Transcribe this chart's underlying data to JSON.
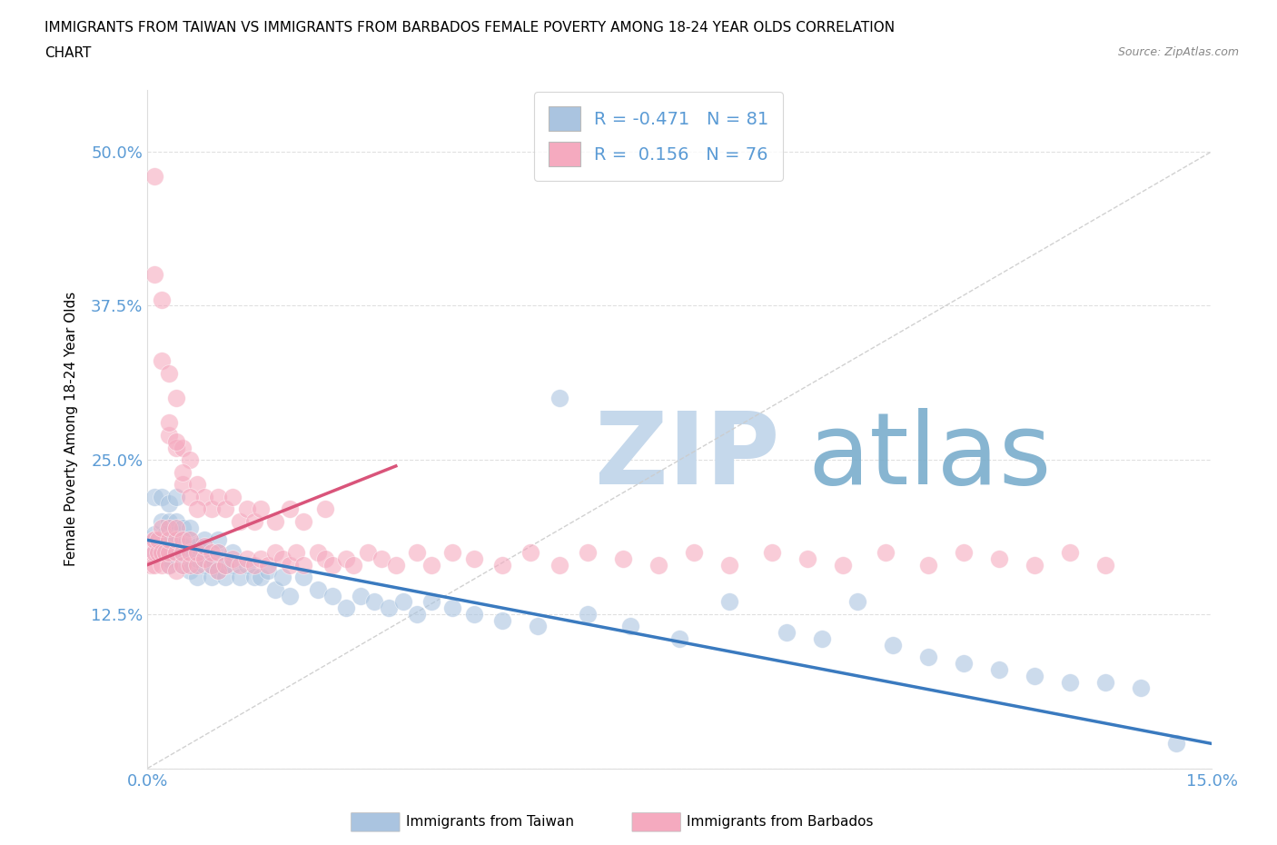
{
  "title_line1": "IMMIGRANTS FROM TAIWAN VS IMMIGRANTS FROM BARBADOS FEMALE POVERTY AMONG 18-24 YEAR OLDS CORRELATION",
  "title_line2": "CHART",
  "source_text": "Source: ZipAtlas.com",
  "ylabel": "Female Poverty Among 18-24 Year Olds",
  "xmin": 0.0,
  "xmax": 0.15,
  "ymin": 0.0,
  "ymax": 0.55,
  "yticks": [
    0.0,
    0.125,
    0.25,
    0.375,
    0.5
  ],
  "ytick_labels": [
    "",
    "12.5%",
    "25.0%",
    "37.5%",
    "50.0%"
  ],
  "xticks": [
    0.0,
    0.025,
    0.05,
    0.075,
    0.1,
    0.125,
    0.15
  ],
  "xtick_labels": [
    "0.0%",
    "",
    "",
    "",
    "",
    "",
    "15.0%"
  ],
  "taiwan_color": "#aac4e0",
  "barbados_color": "#f5aabf",
  "taiwan_line_color": "#3a7abf",
  "barbados_line_color": "#d9547a",
  "taiwan_R": -0.471,
  "taiwan_N": 81,
  "barbados_R": 0.156,
  "barbados_N": 76,
  "watermark_zip": "ZIP",
  "watermark_atlas": "atlas",
  "watermark_color_zip": "#c5d8eb",
  "watermark_color_atlas": "#7aadcc",
  "legend_taiwan_label": "Immigrants from Taiwan",
  "legend_barbados_label": "Immigrants from Barbados",
  "taiwan_line_x0": 0.0,
  "taiwan_line_y0": 0.185,
  "taiwan_line_x1": 0.15,
  "taiwan_line_y1": 0.02,
  "barbados_line_x0": 0.0,
  "barbados_line_y0": 0.165,
  "barbados_line_x1": 0.035,
  "barbados_line_y1": 0.245,
  "diag_line_x0": 0.0,
  "diag_line_y0": 0.0,
  "diag_line_x1": 0.15,
  "diag_line_y1": 0.5,
  "taiwan_scatter_x": [
    0.0005,
    0.001,
    0.001,
    0.001,
    0.0015,
    0.002,
    0.002,
    0.002,
    0.0025,
    0.003,
    0.003,
    0.003,
    0.003,
    0.003,
    0.004,
    0.004,
    0.004,
    0.004,
    0.005,
    0.005,
    0.005,
    0.005,
    0.006,
    0.006,
    0.006,
    0.006,
    0.007,
    0.007,
    0.007,
    0.008,
    0.008,
    0.008,
    0.009,
    0.009,
    0.009,
    0.01,
    0.01,
    0.01,
    0.011,
    0.011,
    0.012,
    0.012,
    0.013,
    0.014,
    0.015,
    0.016,
    0.017,
    0.018,
    0.019,
    0.02,
    0.022,
    0.024,
    0.026,
    0.028,
    0.03,
    0.032,
    0.034,
    0.036,
    0.038,
    0.04,
    0.043,
    0.046,
    0.05,
    0.055,
    0.058,
    0.062,
    0.068,
    0.075,
    0.082,
    0.09,
    0.095,
    0.1,
    0.105,
    0.11,
    0.115,
    0.12,
    0.125,
    0.13,
    0.135,
    0.14,
    0.145
  ],
  "taiwan_scatter_y": [
    0.185,
    0.19,
    0.22,
    0.175,
    0.18,
    0.2,
    0.22,
    0.175,
    0.19,
    0.185,
    0.2,
    0.215,
    0.17,
    0.165,
    0.175,
    0.19,
    0.2,
    0.22,
    0.18,
    0.195,
    0.165,
    0.175,
    0.175,
    0.185,
    0.16,
    0.195,
    0.17,
    0.18,
    0.155,
    0.165,
    0.175,
    0.185,
    0.17,
    0.155,
    0.165,
    0.16,
    0.175,
    0.185,
    0.155,
    0.165,
    0.165,
    0.175,
    0.155,
    0.165,
    0.155,
    0.155,
    0.16,
    0.145,
    0.155,
    0.14,
    0.155,
    0.145,
    0.14,
    0.13,
    0.14,
    0.135,
    0.13,
    0.135,
    0.125,
    0.135,
    0.13,
    0.125,
    0.12,
    0.115,
    0.3,
    0.125,
    0.115,
    0.105,
    0.135,
    0.11,
    0.105,
    0.135,
    0.1,
    0.09,
    0.085,
    0.08,
    0.075,
    0.07,
    0.07,
    0.065,
    0.02
  ],
  "barbados_scatter_x": [
    0.0003,
    0.0005,
    0.0008,
    0.001,
    0.001,
    0.001,
    0.0015,
    0.0015,
    0.002,
    0.002,
    0.002,
    0.0025,
    0.003,
    0.003,
    0.003,
    0.003,
    0.004,
    0.004,
    0.004,
    0.004,
    0.005,
    0.005,
    0.005,
    0.006,
    0.006,
    0.006,
    0.007,
    0.007,
    0.008,
    0.008,
    0.009,
    0.009,
    0.01,
    0.01,
    0.011,
    0.012,
    0.013,
    0.014,
    0.015,
    0.016,
    0.017,
    0.018,
    0.019,
    0.02,
    0.021,
    0.022,
    0.024,
    0.025,
    0.026,
    0.028,
    0.029,
    0.031,
    0.033,
    0.035,
    0.038,
    0.04,
    0.043,
    0.046,
    0.05,
    0.054,
    0.058,
    0.062,
    0.067,
    0.072,
    0.077,
    0.082,
    0.088,
    0.093,
    0.098,
    0.104,
    0.11,
    0.115,
    0.12,
    0.125,
    0.13,
    0.135
  ],
  "barbados_scatter_y": [
    0.175,
    0.165,
    0.185,
    0.165,
    0.175,
    0.185,
    0.175,
    0.185,
    0.165,
    0.175,
    0.195,
    0.175,
    0.165,
    0.175,
    0.185,
    0.195,
    0.16,
    0.175,
    0.185,
    0.195,
    0.165,
    0.175,
    0.185,
    0.165,
    0.175,
    0.185,
    0.165,
    0.175,
    0.17,
    0.18,
    0.165,
    0.175,
    0.16,
    0.175,
    0.165,
    0.17,
    0.165,
    0.17,
    0.165,
    0.17,
    0.165,
    0.175,
    0.17,
    0.165,
    0.175,
    0.165,
    0.175,
    0.17,
    0.165,
    0.17,
    0.165,
    0.175,
    0.17,
    0.165,
    0.175,
    0.165,
    0.175,
    0.17,
    0.165,
    0.175,
    0.165,
    0.175,
    0.17,
    0.165,
    0.175,
    0.165,
    0.175,
    0.17,
    0.165,
    0.175,
    0.165,
    0.175,
    0.17,
    0.165,
    0.175,
    0.165
  ],
  "barbados_scatter_high_x": [
    0.001,
    0.001,
    0.002,
    0.002,
    0.003,
    0.003,
    0.004,
    0.004,
    0.005,
    0.005,
    0.006,
    0.007,
    0.008,
    0.009,
    0.01,
    0.011,
    0.012,
    0.013,
    0.014,
    0.015,
    0.016,
    0.018,
    0.02,
    0.022,
    0.025,
    0.003,
    0.004,
    0.005,
    0.006,
    0.007
  ],
  "barbados_scatter_high_y": [
    0.48,
    0.4,
    0.38,
    0.33,
    0.32,
    0.27,
    0.26,
    0.3,
    0.26,
    0.23,
    0.25,
    0.23,
    0.22,
    0.21,
    0.22,
    0.21,
    0.22,
    0.2,
    0.21,
    0.2,
    0.21,
    0.2,
    0.21,
    0.2,
    0.21,
    0.28,
    0.265,
    0.24,
    0.22,
    0.21
  ],
  "grid_color": "#dddddd",
  "axis_color": "#5b9bd5",
  "tick_label_color": "#5b9bd5",
  "background_color": "#ffffff"
}
